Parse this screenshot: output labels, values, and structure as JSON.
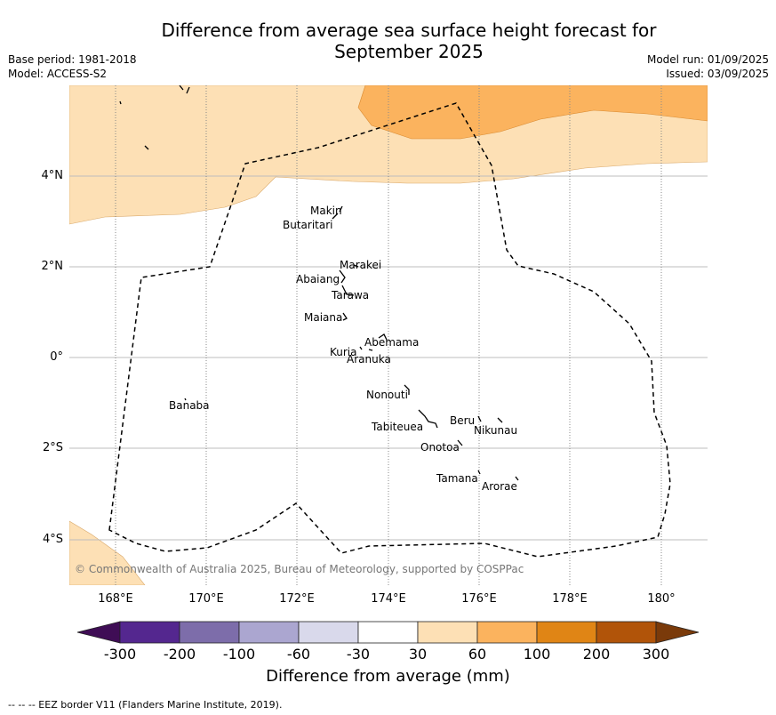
{
  "title_line1": "Difference from average sea surface height forecast for",
  "title_line2": "September 2025",
  "meta_left": {
    "base_period": "Base period: 1981-2018",
    "model": "Model: ACCESS-S2"
  },
  "meta_right": {
    "model_run": "Model run: 01/09/2025",
    "issued": "Issued: 03/09/2025"
  },
  "lat_labels": [
    "4°N",
    "2°N",
    "0°",
    "2°S",
    "4°S"
  ],
  "lon_labels": [
    "168°E",
    "170°E",
    "172°E",
    "174°E",
    "176°E",
    "178°E",
    "180°"
  ],
  "places": [
    "Makin",
    "Butaritari",
    "Marakei",
    "Abaiang",
    "Tarawa",
    "Maiana",
    "Abemama",
    "Kuria",
    "Aranuka",
    "Nonouti",
    "Banaba",
    "Beru",
    "Nikunau",
    "Tabiteuea",
    "Onotoa",
    "Tamana",
    "Arorae"
  ],
  "copyright": "© Commonwealth of Australia 2025, Bureau of Meteorology, supported by COSPPac",
  "colorbar": {
    "ticks": [
      "-300",
      "-200",
      "-100",
      "-60",
      "-30",
      "30",
      "60",
      "100",
      "200",
      "300"
    ],
    "colors": [
      "#3f0d55",
      "#54278f",
      "#7d6daa",
      "#aba6d0",
      "#d9d9eb",
      "#ffffff",
      "#fde0b5",
      "#fbb35e",
      "#e08515",
      "#b15409",
      "#7a3a0a"
    ],
    "label": "Difference from average (mm)"
  },
  "footnote": "--  --  -- EEZ border V11 (Flanders Marine Institute, 2019)."
}
